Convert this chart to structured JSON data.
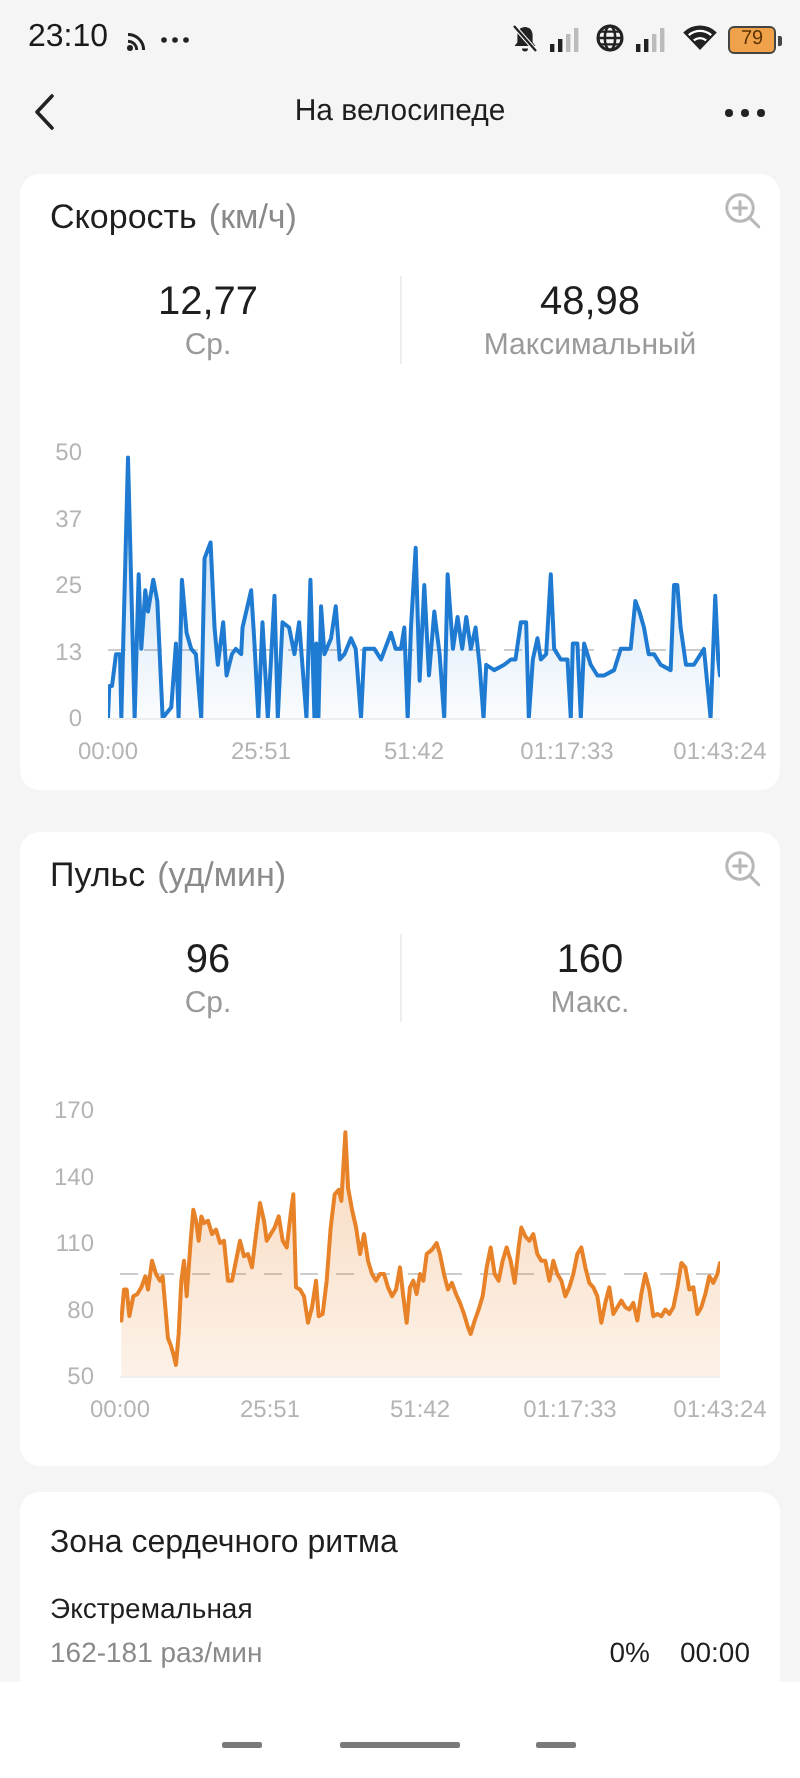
{
  "chart_data": [
    {
      "type": "other",
      "title": "На велосипеде",
      "annotations": [
        "23:10",
        "79"
      ]
    },
    {
      "type": "area",
      "title": "Скорость",
      "subtitle": "(км/ч)",
      "annotations": [
        "12,77",
        "Ср.",
        "48,98",
        "Максимальный"
      ],
      "x": [
        0,
        0.22,
        0.68,
        1.35,
        2.03,
        2.25,
        3.38,
        4.5,
        5.18,
        5.63,
        6.3,
        6.75,
        7.65,
        8.33,
        9.23,
        10.69,
        11.48,
        11.93,
        12.49,
        13.28,
        14.06,
        14.85,
        15.75,
        16.31,
        17.33,
        18,
        18.56,
        19.46,
        20.03,
        20.93,
        21.6,
        22.5,
        22.73,
        24.19,
        24.75,
        25.4,
        26.1,
        27,
        28.13,
        28.69,
        29.48,
        30.6,
        31.5,
        32.29,
        33.53,
        34.2,
        34.88,
        35.2,
        35.55,
        36,
        36.56,
        37.69,
        38.48,
        39.15,
        39.94,
        41.06,
        41.85,
        42.75,
        43.31,
        45,
        46.13,
        47.81,
        48.6,
        49.5,
        50.06,
        50.63,
        51.19,
        51.98,
        52.65,
        53.44,
        54.23,
        55.13,
        56.03,
        56.81,
        57.38,
        58.28,
        59.06,
        59.85,
        60.53,
        61.31,
        62.1,
        62.78,
        63.45,
        63.9,
        65.25,
        66.94,
        68.06,
        68.85,
        69.75,
        70.65,
        71.1,
        71.78,
        72.56,
        73.13,
        74.03,
        74.81,
        75.38,
        76.5,
        77.63,
        78.19,
        78.53,
        79.31,
        79.88,
        80.44,
        81.56,
        82.69,
        83.81,
        85.5,
        86.63,
        88.31,
        89.1,
        89.78,
        90.56,
        91.35,
        92.25,
        93.38,
        95.06,
        95.63,
        96.19,
        96.75,
        97.65,
        99,
        100.69,
        101.81,
        102.6,
        103.1,
        103.4
      ],
      "values": [
        0,
        6,
        6,
        12,
        12,
        0,
        48.98,
        0,
        27,
        13,
        24,
        20,
        26,
        22,
        0,
        2,
        14,
        0,
        26,
        16,
        13,
        12,
        0,
        30,
        33,
        17,
        10,
        18,
        8,
        12,
        13,
        12,
        17,
        24,
        14,
        0,
        18,
        0,
        23,
        0,
        18,
        17,
        12,
        18,
        0,
        26,
        0,
        14,
        0,
        21,
        12,
        15,
        21,
        11,
        12,
        15,
        13,
        0,
        13,
        13,
        11,
        16,
        13,
        13,
        17,
        0,
        17,
        32,
        7,
        25,
        8,
        20,
        12,
        0,
        27,
        13,
        19,
        13,
        19,
        13,
        17,
        10,
        0,
        10,
        9,
        10,
        11,
        11,
        18,
        18,
        0,
        11,
        15,
        11,
        12,
        27,
        13,
        11,
        11,
        0,
        14,
        14,
        0,
        14,
        10,
        8,
        8,
        9,
        13,
        13,
        22,
        20,
        17,
        12,
        12,
        10,
        9,
        25,
        25,
        17,
        10,
        10,
        13,
        0,
        23,
        11,
        8
      ],
      "color": "#1f7bd2",
      "xlim": [
        0,
        103.4
      ],
      "xticks": [
        {
          "value": 0,
          "label": "00:00"
        },
        {
          "value": 25.85,
          "label": "25:51"
        },
        {
          "value": 51.7,
          "label": "51:42"
        },
        {
          "value": 77.55,
          "label": "01:17:33"
        },
        {
          "value": 103.4,
          "label": "01:43:24"
        }
      ],
      "ylim": [
        0,
        50
      ],
      "yticks": [
        0,
        {
          "value": 12.5,
          "label": "13"
        },
        25,
        {
          "value": 37.5,
          "label": "37"
        },
        50
      ],
      "ref_lines": [
        {
          "axis": "y",
          "value": 12.77,
          "color": "#cccccc",
          "line_style": "dashed"
        }
      ]
    },
    {
      "type": "area",
      "title": "Пульс",
      "subtitle": "(уд/мин)",
      "annotations": [
        "96",
        "Ср.",
        "160",
        "Макс."
      ],
      "x": [
        0.23,
        0.69,
        1.15,
        1.61,
        2.3,
        2.99,
        3.68,
        4.37,
        4.83,
        5.52,
        6.2,
        6.89,
        7.35,
        7.81,
        8.27,
        8.73,
        9.19,
        9.65,
        10.11,
        10.57,
        11.03,
        11.49,
        12.18,
        12.64,
        13.1,
        13.56,
        14.02,
        14.48,
        15.17,
        15.86,
        16.55,
        17.24,
        17.92,
        18.61,
        19.3,
        19.99,
        20.68,
        21.37,
        22.06,
        22.75,
        23.44,
        24.13,
        24.82,
        25.28,
        25.97,
        26.66,
        27.35,
        28.04,
        28.73,
        29.41,
        29.87,
        30.33,
        31.02,
        31.71,
        32.4,
        33.09,
        33.78,
        34.24,
        34.93,
        35.62,
        36.31,
        37,
        37.69,
        38.15,
        38.84,
        39.3,
        39.99,
        40.68,
        41.36,
        42.05,
        42.74,
        43.43,
        44.12,
        44.81,
        45.5,
        46.19,
        46.88,
        47.57,
        48.25,
        48.82,
        49.4,
        49.97,
        50.55,
        51.12,
        51.7,
        52.27,
        52.85,
        53.77,
        54.57,
        55.14,
        55.83,
        56.52,
        57.21,
        57.9,
        58.59,
        59.28,
        59.97,
        60.43,
        61.12,
        61.81,
        62.5,
        63.19,
        63.88,
        64.57,
        65.26,
        65.94,
        66.63,
        67.32,
        68.01,
        68.7,
        69.16,
        69.85,
        70.54,
        71.23,
        71.92,
        72.61,
        73.3,
        73.99,
        74.68,
        75.37,
        76.06,
        76.75,
        77.43,
        78.12,
        78.81,
        79.5,
        80.19,
        80.88,
        81.57,
        82.26,
        82.95,
        83.64,
        84.33,
        85.02,
        85.71,
        86.4,
        87.09,
        87.78,
        88.47,
        89.15,
        89.84,
        90.53,
        91.22,
        91.91,
        92.6,
        93.29,
        93.98,
        94.67,
        95.36,
        96.05,
        96.74,
        97.43,
        98.12,
        98.81,
        99.5,
        100.18,
        100.87,
        101.56,
        102.25,
        102.94,
        103.4
      ],
      "values": [
        75,
        89,
        89,
        77,
        86,
        87,
        90,
        95,
        89,
        102,
        96,
        93,
        95,
        81,
        67,
        64,
        60,
        55,
        69,
        93,
        102,
        86,
        111,
        125,
        120,
        111,
        122,
        119,
        120,
        114,
        116,
        110,
        111,
        93,
        93,
        102,
        111,
        104,
        105,
        99,
        114,
        128,
        120,
        111,
        114,
        117,
        122,
        111,
        108,
        123,
        132,
        90,
        89,
        86,
        74,
        81,
        93,
        77,
        78,
        93,
        117,
        132,
        134,
        129,
        160,
        135,
        125,
        117,
        105,
        114,
        102,
        96,
        93,
        96,
        96,
        90,
        86,
        89,
        99,
        86,
        74,
        90,
        93,
        87,
        96,
        93,
        105,
        107,
        110,
        105,
        96,
        89,
        92,
        87,
        83,
        78,
        72,
        69,
        75,
        80,
        86,
        99,
        108,
        96,
        93,
        102,
        108,
        102,
        92,
        108,
        117,
        113,
        111,
        114,
        105,
        102,
        102,
        93,
        102,
        96,
        93,
        86,
        90,
        96,
        105,
        108,
        99,
        92,
        90,
        86,
        74,
        83,
        90,
        78,
        81,
        84,
        81,
        80,
        83,
        75,
        87,
        96,
        89,
        77,
        78,
        77,
        80,
        78,
        81,
        90,
        101,
        99,
        89,
        90,
        78,
        81,
        87,
        95,
        92,
        96,
        101
      ],
      "color": "#e88228",
      "xlim": [
        0,
        103.4
      ],
      "xticks": [
        {
          "value": 0,
          "label": "00:00"
        },
        {
          "value": 25.85,
          "label": "25:51"
        },
        {
          "value": 51.7,
          "label": "51:42"
        },
        {
          "value": 77.55,
          "label": "01:17:33"
        },
        {
          "value": 103.4,
          "label": "01:43:24"
        }
      ],
      "ylim": [
        50,
        170
      ],
      "yticks": [
        50,
        80,
        110,
        140,
        170
      ],
      "ref_lines": [
        {
          "axis": "y",
          "value": 96,
          "color": "#cccccc",
          "line_style": "dashed"
        }
      ]
    },
    {
      "type": "other",
      "title": "Зона сердечного ритма",
      "annotations": [
        "Экстремальная",
        "162-181 раз/мин",
        "0%",
        "00:00"
      ]
    }
  ]
}
